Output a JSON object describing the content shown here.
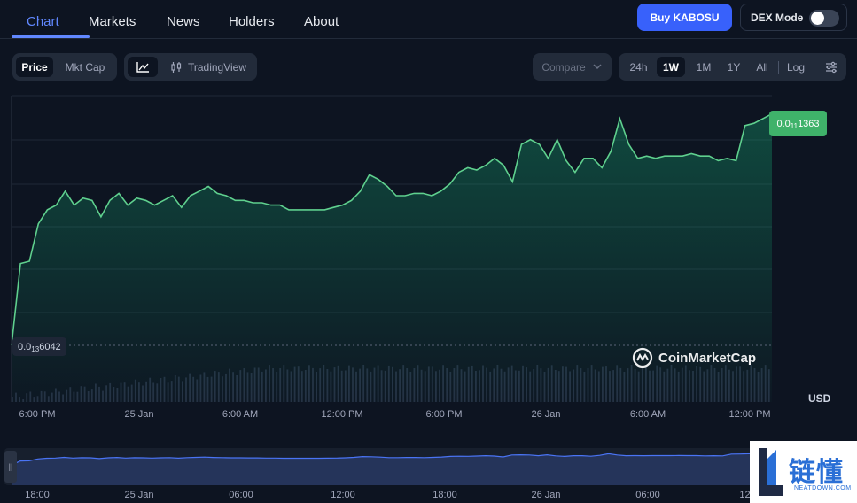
{
  "nav": {
    "tabs": [
      {
        "label": "Chart",
        "active": true
      },
      {
        "label": "Markets"
      },
      {
        "label": "News"
      },
      {
        "label": "Holders"
      },
      {
        "label": "About"
      }
    ],
    "buy_label": "Buy KABOSU",
    "dex_label": "DEX Mode",
    "dex_on": false
  },
  "toolbar": {
    "price_label": "Price",
    "mktcap_label": "Mkt Cap",
    "tradingview_label": "TradingView",
    "compare_label": "Compare",
    "ranges": [
      "24h",
      "1W",
      "1M",
      "1Y",
      "All"
    ],
    "active_range": "1W",
    "log_label": "Log"
  },
  "chart": {
    "current_price": {
      "prefix": "0.0",
      "zeros": "11",
      "digits": "1363"
    },
    "low_price": {
      "prefix": "0.0",
      "zeros": "13",
      "digits": "6042"
    },
    "currency": "USD",
    "watermark": "CoinMarketCap",
    "accent": "#16c784"
  },
  "chart_data": {
    "type": "area",
    "x_ticks": [
      "6:00 PM",
      "25 Jan",
      "6:00 AM",
      "12:00 PM",
      "6:00 PM",
      "26 Jan",
      "6:00 AM",
      "12:00 PM"
    ],
    "series": [
      {
        "values": [
          0.0,
          0.35,
          0.36,
          0.52,
          0.58,
          0.6,
          0.66,
          0.6,
          0.63,
          0.62,
          0.55,
          0.62,
          0.65,
          0.6,
          0.63,
          0.62,
          0.6,
          0.62,
          0.64,
          0.59,
          0.64,
          0.66,
          0.68,
          0.65,
          0.64,
          0.62,
          0.62,
          0.61,
          0.61,
          0.6,
          0.6,
          0.58,
          0.58,
          0.58,
          0.58,
          0.58,
          0.59,
          0.6,
          0.62,
          0.66,
          0.73,
          0.71,
          0.68,
          0.64,
          0.64,
          0.65,
          0.65,
          0.64,
          0.66,
          0.69,
          0.74,
          0.76,
          0.75,
          0.77,
          0.8,
          0.77,
          0.7,
          0.86,
          0.88,
          0.86,
          0.8,
          0.88,
          0.79,
          0.74,
          0.8,
          0.8,
          0.76,
          0.83,
          0.97,
          0.86,
          0.8,
          0.81,
          0.8,
          0.81,
          0.81,
          0.81,
          0.82,
          0.81,
          0.81,
          0.79,
          0.8,
          0.79,
          0.94,
          0.95,
          0.97,
          0.99
        ]
      }
    ],
    "grid": true
  },
  "navigator": {
    "ticks": [
      "18:00",
      "25 Jan",
      "06:00",
      "12:00",
      "18:00",
      "26 Jan",
      "06:00",
      "12:"
    ]
  },
  "brand": {
    "cn": "链懂",
    "en": "NEATDOWN.COM"
  }
}
